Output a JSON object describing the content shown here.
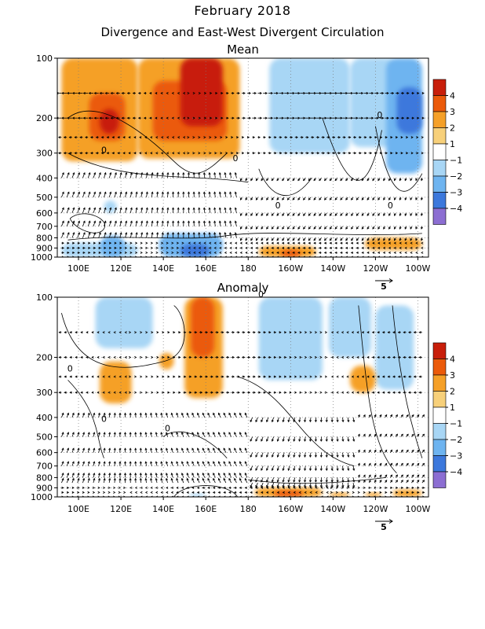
{
  "title": "February 2018",
  "subtitle": "Divergence and East-West Divergent Circulation",
  "colors": {
    "pos4": "#c81e0a",
    "pos3": "#eb5a0a",
    "pos2": "#f5a028",
    "pos1": "#f7d07a",
    "neg1": "#a8d6f5",
    "neg2": "#6eb4f0",
    "neg3": "#3c78dc",
    "neg4": "#8c6ed2",
    "frame": "#000000"
  },
  "chart_data": [
    {
      "type": "heatmap",
      "title": "Mean",
      "x_ticks": [
        "100E",
        "120E",
        "140E",
        "160E",
        "180",
        "160W",
        "140W",
        "120W",
        "100W"
      ],
      "x_tick_lon": [
        100,
        120,
        140,
        160,
        180,
        200,
        220,
        240,
        260
      ],
      "xlim_lon": [
        90,
        265
      ],
      "y_ticks": [
        "100",
        "200",
        "300",
        "400",
        "500",
        "600",
        "700",
        "800",
        "900",
        "1000"
      ],
      "y_tick_values": [
        100,
        200,
        300,
        400,
        500,
        600,
        700,
        800,
        900,
        1000
      ],
      "ylim": [
        100,
        1000
      ],
      "y_scale": "log (pressure)",
      "grid": "dotted",
      "colorbar_labels": [
        "4",
        "3",
        "2",
        "1",
        "-1",
        "-2",
        "-3",
        "-4"
      ],
      "vector_ref_label": "5",
      "contour_labels": [
        "0",
        "0",
        "0",
        "0",
        "0"
      ],
      "divergence_regions": [
        {
          "lon": [
            92,
            128
          ],
          "p": [
            100,
            330
          ],
          "level": 2
        },
        {
          "lon": [
            105,
            122
          ],
          "p": [
            150,
            260
          ],
          "level": 3
        },
        {
          "lon": [
            110,
            119
          ],
          "p": [
            180,
            240
          ],
          "level": 4
        },
        {
          "lon": [
            128,
            176
          ],
          "p": [
            100,
            320
          ],
          "level": 2
        },
        {
          "lon": [
            135,
            170
          ],
          "p": [
            130,
            260
          ],
          "level": 3
        },
        {
          "lon": [
            148,
            168
          ],
          "p": [
            100,
            220
          ],
          "level": 4
        },
        {
          "lon": [
            190,
            228
          ],
          "p": [
            100,
            300
          ],
          "level": -1
        },
        {
          "lon": [
            228,
            250
          ],
          "p": [
            100,
            280
          ],
          "level": -1
        },
        {
          "lon": [
            245,
            262
          ],
          "p": [
            100,
            380
          ],
          "level": -2
        },
        {
          "lon": [
            250,
            262
          ],
          "p": [
            140,
            240
          ],
          "level": -3
        },
        {
          "lon": [
            92,
            128
          ],
          "p": [
            850,
            1000
          ],
          "level": -1
        },
        {
          "lon": [
            110,
            122
          ],
          "p": [
            780,
            1000
          ],
          "level": -2
        },
        {
          "lon": [
            138,
            168
          ],
          "p": [
            760,
            1000
          ],
          "level": -2
        },
        {
          "lon": [
            148,
            162
          ],
          "p": [
            860,
            1000
          ],
          "level": -3
        },
        {
          "lon": [
            112,
            118
          ],
          "p": [
            520,
            600
          ],
          "level": -1
        },
        {
          "lon": [
            185,
            212
          ],
          "p": [
            880,
            1000
          ],
          "level": 2
        },
        {
          "lon": [
            195,
            205
          ],
          "p": [
            920,
            1000
          ],
          "level": 3
        },
        {
          "lon": [
            235,
            262
          ],
          "p": [
            800,
            920
          ],
          "level": 2
        }
      ]
    },
    {
      "type": "heatmap",
      "title": "Anomaly",
      "x_ticks": [
        "100E",
        "120E",
        "140E",
        "160E",
        "180",
        "160W",
        "140W",
        "120W",
        "100W"
      ],
      "x_tick_lon": [
        100,
        120,
        140,
        160,
        180,
        200,
        220,
        240,
        260
      ],
      "xlim_lon": [
        90,
        265
      ],
      "y_ticks": [
        "100",
        "200",
        "300",
        "400",
        "500",
        "600",
        "700",
        "800",
        "900",
        "1000"
      ],
      "y_tick_values": [
        100,
        200,
        300,
        400,
        500,
        600,
        700,
        800,
        900,
        1000
      ],
      "ylim": [
        100,
        1000
      ],
      "y_scale": "log (pressure)",
      "grid": "dotted",
      "colorbar_labels": [
        "4",
        "3",
        "2",
        "1",
        "-1",
        "-2",
        "-3",
        "-4"
      ],
      "vector_ref_label": "5",
      "contour_labels": [
        "0",
        "0",
        "0",
        "0"
      ],
      "divergence_regions": [
        {
          "lon": [
            108,
            135
          ],
          "p": [
            100,
            180
          ],
          "level": -1
        },
        {
          "lon": [
            150,
            168
          ],
          "p": [
            100,
            320
          ],
          "level": 2
        },
        {
          "lon": [
            153,
            164
          ],
          "p": [
            100,
            200
          ],
          "level": 3
        },
        {
          "lon": [
            110,
            125
          ],
          "p": [
            210,
            340
          ],
          "level": 2
        },
        {
          "lon": [
            138,
            145
          ],
          "p": [
            190,
            230
          ],
          "level": 2
        },
        {
          "lon": [
            185,
            215
          ],
          "p": [
            100,
            260
          ],
          "level": -1
        },
        {
          "lon": [
            218,
            238
          ],
          "p": [
            100,
            200
          ],
          "level": -1
        },
        {
          "lon": [
            240,
            258
          ],
          "p": [
            110,
            290
          ],
          "level": -1
        },
        {
          "lon": [
            228,
            240
          ],
          "p": [
            220,
            300
          ],
          "level": 2
        },
        {
          "lon": [
            183,
            215
          ],
          "p": [
            900,
            1000
          ],
          "level": 2
        },
        {
          "lon": [
            192,
            206
          ],
          "p": [
            930,
            1000
          ],
          "level": 3
        },
        {
          "lon": [
            152,
            160
          ],
          "p": [
            960,
            1000
          ],
          "level": -1
        },
        {
          "lon": [
            218,
            228
          ],
          "p": [
            950,
            1000
          ],
          "level": 2
        },
        {
          "lon": [
            235,
            243
          ],
          "p": [
            950,
            1000
          ],
          "level": 2
        },
        {
          "lon": [
            248,
            262
          ],
          "p": [
            920,
            1000
          ],
          "level": 2
        }
      ]
    }
  ]
}
